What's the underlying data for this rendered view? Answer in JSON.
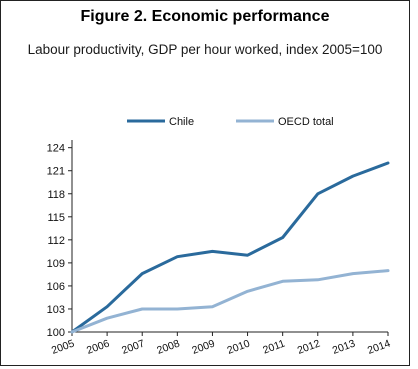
{
  "figure": {
    "title": "Figure 2. Economic performance",
    "subtitle": "Labour productivity, GDP per hour worked, index 2005=100"
  },
  "chart_data": {
    "type": "line",
    "title": "Figure 2. Economic performance",
    "subtitle": "Labour productivity, GDP per hour worked, index 2005=100",
    "xlabel": "",
    "ylabel": "",
    "x": [
      "2005",
      "2006",
      "2007",
      "2008",
      "2009",
      "2010",
      "2011",
      "2012",
      "2013",
      "2014"
    ],
    "y_ticks": [
      100,
      103,
      106,
      109,
      112,
      115,
      118,
      121,
      124
    ],
    "ylim": [
      100,
      125
    ],
    "grid": false,
    "legend_position": "top",
    "series": [
      {
        "name": "Chile",
        "color": "#2a6a9c",
        "values": [
          100,
          103.3,
          107.6,
          109.8,
          110.5,
          110.0,
          112.3,
          118.0,
          120.3,
          122.0
        ]
      },
      {
        "name": "OECD total",
        "color": "#93b3d3",
        "values": [
          100,
          101.8,
          103.0,
          103.0,
          103.3,
          105.3,
          106.6,
          106.8,
          107.6,
          108.0
        ]
      }
    ]
  }
}
